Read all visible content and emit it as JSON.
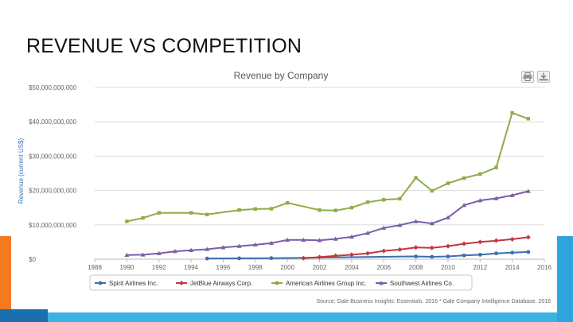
{
  "slide": {
    "title": "REVENUE VS COMPETITION"
  },
  "toolbar": {
    "print_icon": "print-icon",
    "download_icon": "download-icon"
  },
  "colors": {
    "spirit": "#3b6fb0",
    "jetblue": "#c0393b",
    "american": "#8ead48",
    "southwest": "#7a5ea8",
    "grid": "#dcdcdc",
    "axis_text": "#666666",
    "orange_accent": "#f47a20",
    "blue_accent": "#2fa3dd"
  },
  "chart_data": {
    "type": "line",
    "title": "Revenue by Company",
    "ylabel": "Revenue (current US$)",
    "xlabel": "",
    "xlim": [
      1988,
      2016
    ],
    "ylim": [
      0,
      50000000000
    ],
    "y_ticks": [
      0,
      10000000000,
      20000000000,
      30000000000,
      40000000000,
      50000000000
    ],
    "y_tick_labels": [
      "$0",
      "$10,000,000,000",
      "$20,000,000,000",
      "$30,000,000,000",
      "$40,000,000,000",
      "$50,000,000,000"
    ],
    "x_ticks": [
      1988,
      1990,
      1992,
      1994,
      1996,
      1998,
      2000,
      2002,
      2004,
      2006,
      2008,
      2010,
      2012,
      2014,
      2016
    ],
    "x_tick_labels": [
      "1988",
      "1990",
      "1992",
      "1994",
      "1996",
      "1998",
      "2000",
      "2002",
      "2004",
      "2006",
      "2008",
      "2010",
      "2012",
      "2014",
      "2016"
    ],
    "legend_position": "bottom",
    "source": "Source: Gale Business Insights: Essentials. 2016 * Gale Company Intelligence Database. 2016",
    "series": [
      {
        "name": "Spirit Airlines Inc.",
        "color_key": "spirit",
        "marker": "circle",
        "x": [
          1995,
          1997,
          1999,
          2008,
          2009,
          2010,
          2011,
          2012,
          2013,
          2014,
          2015
        ],
        "y": [
          200000000,
          250000000,
          300000000,
          800000000,
          700000000,
          800000000,
          1100000000,
          1300000000,
          1700000000,
          1900000000,
          2100000000
        ]
      },
      {
        "name": "JetBlue Airways Corp.",
        "color_key": "jetblue",
        "marker": "diamond",
        "x": [
          2001,
          2002,
          2003,
          2004,
          2005,
          2006,
          2007,
          2008,
          2009,
          2010,
          2011,
          2012,
          2013,
          2014,
          2015
        ],
        "y": [
          300000000,
          600000000,
          1000000000,
          1300000000,
          1700000000,
          2400000000,
          2800000000,
          3400000000,
          3300000000,
          3800000000,
          4500000000,
          5000000000,
          5400000000,
          5800000000,
          6400000000
        ]
      },
      {
        "name": "American Airlines Group Inc.",
        "color_key": "american",
        "marker": "square",
        "x": [
          1990,
          1991,
          1992,
          1994,
          1995,
          1997,
          1998,
          1999,
          2000,
          2002,
          2003,
          2004,
          2005,
          2006,
          2007,
          2008,
          2009,
          2010,
          2011,
          2012,
          2013,
          2014,
          2015
        ],
        "y": [
          11000000000,
          12000000000,
          13500000000,
          13500000000,
          13000000000,
          14300000000,
          14600000000,
          14700000000,
          16400000000,
          14300000000,
          14200000000,
          15000000000,
          16600000000,
          17300000000,
          17600000000,
          23700000000,
          19900000000,
          22100000000,
          23600000000,
          24800000000,
          26700000000,
          42600000000,
          40900000000
        ]
      },
      {
        "name": "Southwest Airlines Co.",
        "color_key": "southwest",
        "marker": "triangle",
        "x": [
          1990,
          1991,
          1992,
          1993,
          1994,
          1995,
          1996,
          1997,
          1998,
          1999,
          2000,
          2001,
          2002,
          2003,
          2004,
          2005,
          2006,
          2007,
          2008,
          2009,
          2010,
          2011,
          2012,
          2013,
          2014,
          2015
        ],
        "y": [
          1200000000,
          1300000000,
          1700000000,
          2300000000,
          2600000000,
          2900000000,
          3400000000,
          3800000000,
          4200000000,
          4700000000,
          5600000000,
          5600000000,
          5500000000,
          5900000000,
          6500000000,
          7600000000,
          9100000000,
          9900000000,
          11000000000,
          10400000000,
          12100000000,
          15700000000,
          17100000000,
          17700000000,
          18600000000,
          19800000000
        ]
      }
    ]
  }
}
